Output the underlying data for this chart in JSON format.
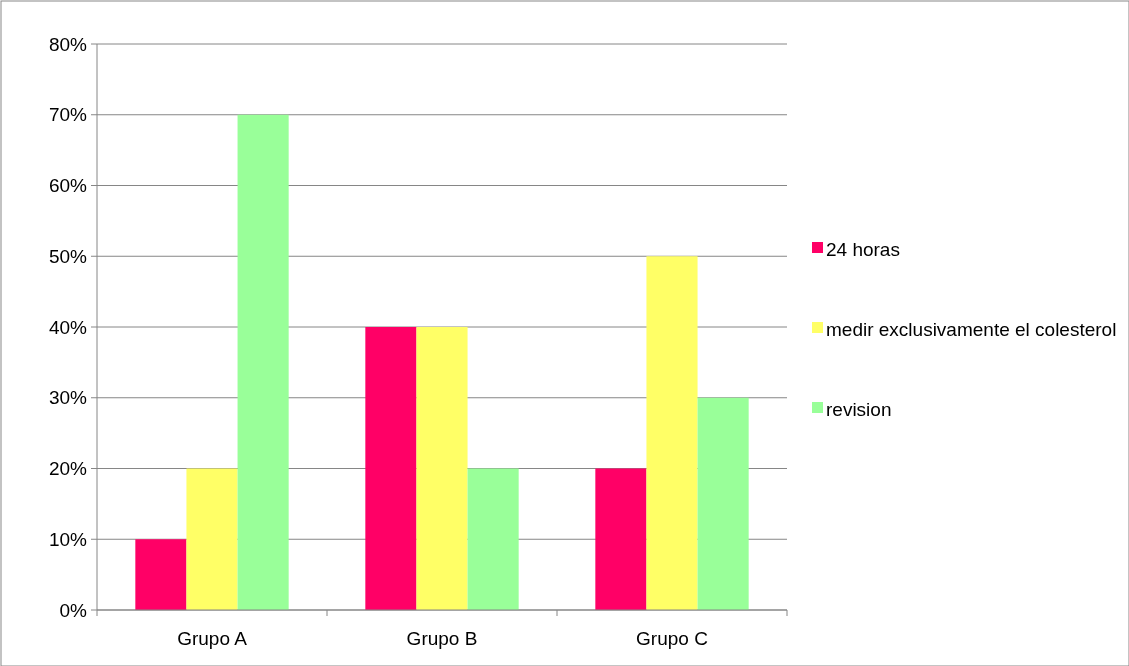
{
  "chart_data": {
    "type": "bar",
    "categories": [
      "Grupo A",
      "Grupo B",
      "Grupo C"
    ],
    "series": [
      {
        "name": "24 horas",
        "color": "#ff0066",
        "values": [
          10,
          40,
          20
        ]
      },
      {
        "name": "medir exclusivamente el colesterol",
        "color": "#ffff66",
        "values": [
          20,
          40,
          50
        ]
      },
      {
        "name": "revision",
        "color": "#99ff99",
        "values": [
          70,
          20,
          30
        ]
      }
    ],
    "ylim": [
      0,
      80
    ],
    "yticks": [
      {
        "value": 0,
        "label": "0%"
      },
      {
        "value": 10,
        "label": "10%"
      },
      {
        "value": 20,
        "label": "20%"
      },
      {
        "value": 30,
        "label": "30%"
      },
      {
        "value": 40,
        "label": "40%"
      },
      {
        "value": 50,
        "label": "50%"
      },
      {
        "value": 60,
        "label": "60%"
      },
      {
        "value": 70,
        "label": "70%"
      },
      {
        "value": 80,
        "label": "80%"
      }
    ],
    "grid": "y",
    "legend": "right"
  }
}
